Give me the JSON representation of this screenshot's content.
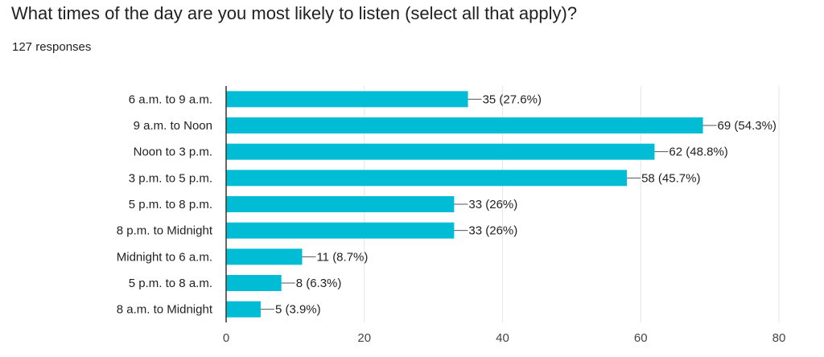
{
  "header": {
    "question": "What times of the day are you most likely to listen (select all that apply)?",
    "responses": "127 responses"
  },
  "colors": {
    "bar": "#00bcd4",
    "gridline": "#e6e6e6",
    "axis": "#333333",
    "connector": "#555555"
  },
  "chart_data": {
    "type": "bar",
    "orientation": "horizontal",
    "title": "",
    "xlabel": "",
    "ylabel": "",
    "categories": [
      "6 a.m. to 9 a.m.",
      "9 a.m. to Noon",
      "Noon to 3 p.m.",
      "3 p.m. to 5 p.m.",
      "5 p.m. to 8 p.m.",
      "8 p.m. to Midnight",
      "Midnight to 6 a.m.",
      "5 p.m. to 8 a.m.",
      "8 a.m. to Midnight"
    ],
    "values": [
      35,
      69,
      62,
      58,
      33,
      33,
      11,
      8,
      5
    ],
    "data_labels": [
      "35 (27.6%)",
      "69 (54.3%)",
      "62 (48.8%)",
      "58 (45.7%)",
      "33 (26%)",
      "33 (26%)",
      "11 (8.7%)",
      "8 (6.3%)",
      "5 (3.9%)"
    ],
    "xlim": [
      0,
      80
    ],
    "xticks": [
      0,
      20,
      40,
      60,
      80
    ],
    "grid": true,
    "legend": "none"
  }
}
